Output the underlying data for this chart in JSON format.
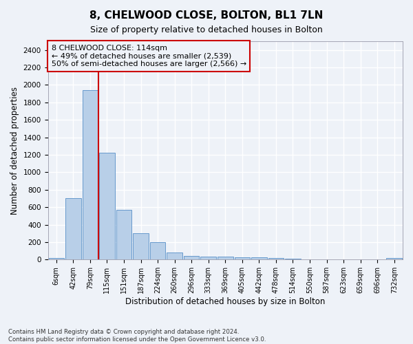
{
  "title": "8, CHELWOOD CLOSE, BOLTON, BL1 7LN",
  "subtitle": "Size of property relative to detached houses in Bolton",
  "xlabel": "Distribution of detached houses by size in Bolton",
  "ylabel": "Number of detached properties",
  "bar_labels": [
    "6sqm",
    "42sqm",
    "79sqm",
    "115sqm",
    "151sqm",
    "187sqm",
    "224sqm",
    "260sqm",
    "296sqm",
    "333sqm",
    "369sqm",
    "405sqm",
    "442sqm",
    "478sqm",
    "514sqm",
    "550sqm",
    "587sqm",
    "623sqm",
    "659sqm",
    "696sqm",
    "732sqm"
  ],
  "bar_values": [
    15,
    700,
    1940,
    1220,
    570,
    305,
    200,
    85,
    45,
    38,
    35,
    30,
    25,
    18,
    10,
    5,
    4,
    3,
    2,
    2,
    15
  ],
  "bar_color": "#b8cfe8",
  "bar_edgecolor": "#6699cc",
  "annotation_text": "8 CHELWOOD CLOSE: 114sqm\n← 49% of detached houses are smaller (2,539)\n50% of semi-detached houses are larger (2,566) →",
  "vline_index": 2.5,
  "vline_color": "#cc0000",
  "annotation_box_edgecolor": "#cc0000",
  "annotation_fontsize": 8,
  "ylim": [
    0,
    2500
  ],
  "yticks": [
    0,
    200,
    400,
    600,
    800,
    1000,
    1200,
    1400,
    1600,
    1800,
    2000,
    2200,
    2400
  ],
  "footer_text": "Contains HM Land Registry data © Crown copyright and database right 2024.\nContains public sector information licensed under the Open Government Licence v3.0.",
  "background_color": "#eef2f8",
  "grid_color": "#ffffff",
  "title_fontsize": 11,
  "subtitle_fontsize": 9,
  "xlabel_fontsize": 8.5,
  "ylabel_fontsize": 8.5
}
